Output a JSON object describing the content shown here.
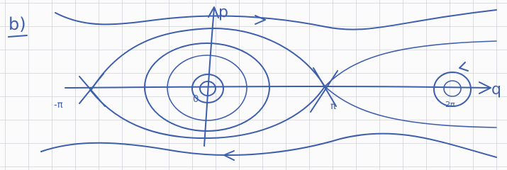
{
  "panel_label": "b)",
  "axes": {
    "vertical": "p",
    "horizontal": "q"
  },
  "points": [
    "-π",
    "0",
    "π",
    "2π"
  ]
}
